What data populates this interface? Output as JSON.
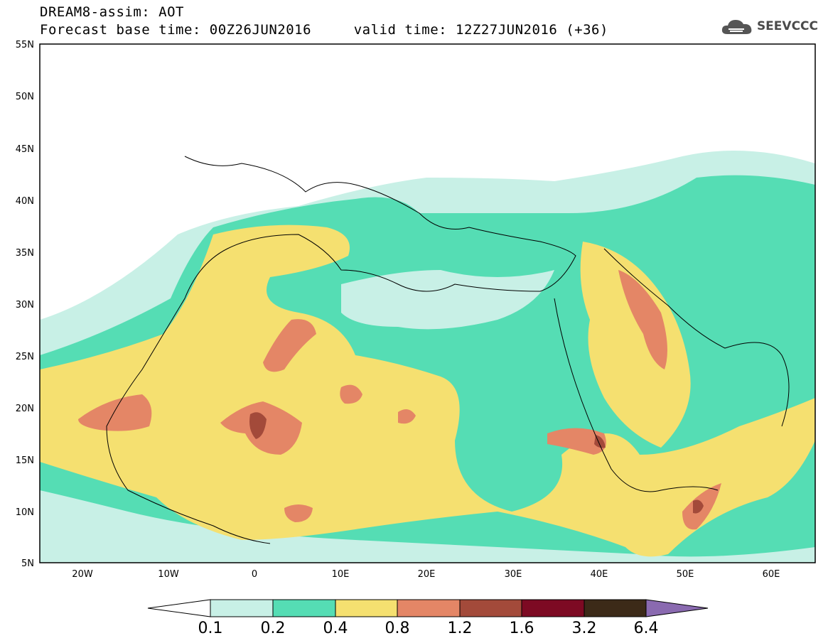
{
  "header": {
    "title_line1": "DREAM8-assim: AOT",
    "title_line2": "Forecast base time: 00Z26JUN2016     valid time: 12Z27JUN2016 (+36)",
    "logo_text": "SEEVCCC"
  },
  "map": {
    "type": "filled-contour-map",
    "variable": "AOT",
    "region": "North Africa, Mediterranean, Middle East",
    "lon_range": [
      -25,
      65
    ],
    "lat_range": [
      5,
      55
    ],
    "lat_ticks": [
      "55N",
      "50N",
      "45N",
      "40N",
      "35N",
      "30N",
      "25N",
      "20N",
      "15N",
      "10N",
      "5N"
    ],
    "lon_ticks": [
      "20W",
      "10W",
      "0",
      "10E",
      "20E",
      "30E",
      "40E",
      "50E",
      "60E"
    ]
  },
  "colorbar": {
    "labels": [
      "0.1",
      "0.2",
      "0.4",
      "0.8",
      "1.2",
      "1.6",
      "3.2",
      "6.4"
    ],
    "colors": [
      "#c8f0e6",
      "#55ddb4",
      "#f5e070",
      "#e48666",
      "#a34a3a",
      "#7d0a23",
      "#3c2a18",
      "#8a6ab0"
    ]
  }
}
